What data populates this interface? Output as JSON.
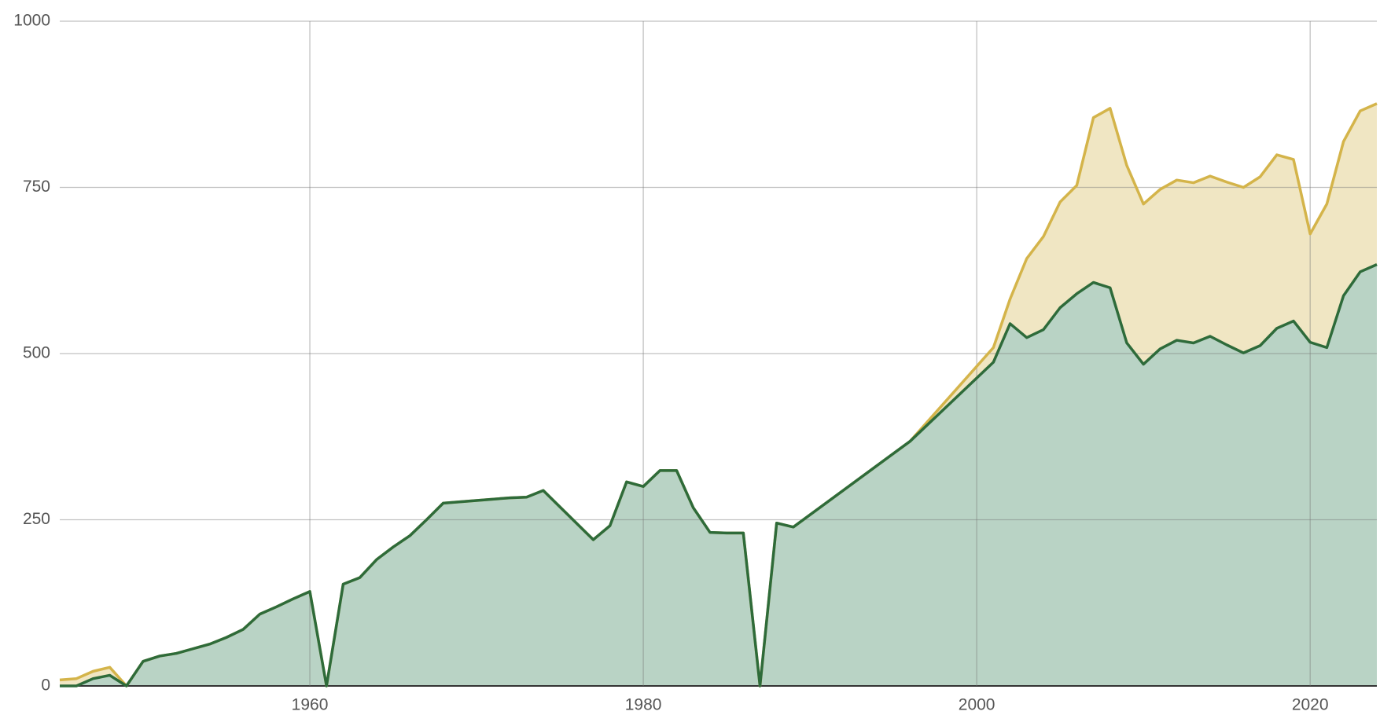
{
  "chart_data": {
    "type": "stacked-area",
    "x": [
      1945,
      1946,
      1947,
      1948,
      1949,
      1950,
      1951,
      1952,
      1953,
      1954,
      1955,
      1956,
      1957,
      1958,
      1959,
      1960,
      1961,
      1962,
      1963,
      1964,
      1965,
      1966,
      1967,
      1968,
      1972,
      1973,
      1974,
      1977,
      1978,
      1979,
      1980,
      1981,
      1982,
      1983,
      1984,
      1985,
      1986,
      1987,
      1988,
      1989,
      1996,
      2001,
      2002,
      2003,
      2004,
      2005,
      2006,
      2007,
      2008,
      2009,
      2010,
      2011,
      2012,
      2013,
      2014,
      2015,
      2016,
      2017,
      2018,
      2019,
      2020,
      2021,
      2022,
      2023,
      2024
    ],
    "series": [
      {
        "color": "#2e6b3a",
        "fill": "#b9d3c5",
        "values": [
          0,
          0,
          11,
          16,
          0,
          37,
          45,
          49,
          56,
          63,
          73,
          85,
          108,
          119,
          131,
          142,
          0,
          153,
          163,
          190,
          209,
          226,
          250,
          275,
          283,
          284,
          294,
          220,
          241,
          307,
          300,
          324,
          324,
          268,
          231,
          230,
          230,
          0,
          245,
          239,
          368,
          487,
          545,
          524,
          536,
          569,
          590,
          607,
          599,
          516,
          484,
          507,
          520,
          516,
          526,
          513,
          501,
          512,
          538,
          549,
          517,
          509,
          587,
          623,
          634
        ]
      },
      {
        "color": "#d4b44a",
        "fill": "#f0e6c3",
        "values": [
          9,
          11,
          11,
          12,
          0,
          0,
          0,
          0,
          0,
          0,
          0,
          0,
          0,
          0,
          0,
          0,
          0,
          0,
          0,
          0,
          0,
          0,
          0,
          0,
          0,
          0,
          0,
          0,
          0,
          0,
          0,
          0,
          0,
          0,
          0,
          0,
          0,
          0,
          0,
          0,
          0,
          22,
          37,
          119,
          140,
          159,
          163,
          248,
          270,
          267,
          241,
          240,
          241,
          241,
          241,
          245,
          249,
          254,
          261,
          243,
          163,
          216,
          232,
          242,
          242
        ]
      }
    ],
    "xlim": [
      1945,
      2024
    ],
    "xticks": [
      1960,
      1980,
      2000,
      2020
    ],
    "ylim": [
      0,
      1000
    ],
    "yticks": [
      0,
      250,
      500,
      750,
      1000
    ],
    "grid": true
  }
}
